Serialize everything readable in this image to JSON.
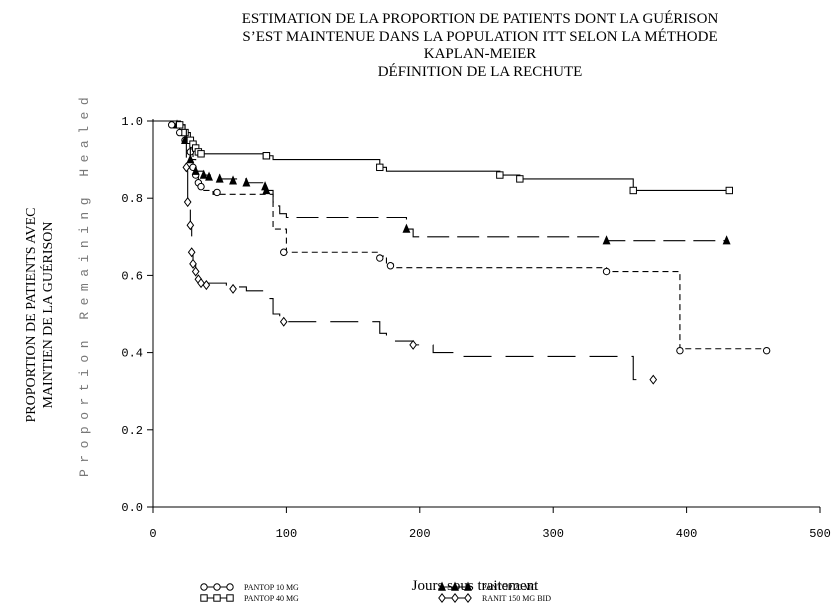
{
  "title_lines": [
    "ESTIMATION DE LA PROPORTION DE PATIENTS DONT LA GUÉRISON",
    "S’EST MAINTENUE DANS LA POPULATION ITT SELON LA MÉTHODE",
    "KAPLAN-MEIER",
    "DÉFINITION DE LA RECHUTE"
  ],
  "ylabel_fr_lines": [
    "PROPORTION DE PATIENTS AVEC",
    "MAINTIEN DE LA GUÉRISON"
  ],
  "ylabel_en": "Proportion Remaining Healed",
  "xlabel": "Jours sous traitement",
  "chart_data": {
    "type": "line",
    "subtype": "kaplan-meier step",
    "xlim": [
      0,
      500
    ],
    "ylim": [
      0,
      1.0
    ],
    "x_ticks": [
      "0",
      "100",
      "200",
      "300",
      "400",
      "500"
    ],
    "y_ticks": [
      "0.0",
      "0.2",
      "0.4",
      "0.6",
      "0.8",
      "1.0"
    ],
    "legend_position": "bottom",
    "series": [
      {
        "name": "PANTOP 10 MG",
        "marker": "circle",
        "dash": "6 4",
        "x": [
          0,
          14,
          20,
          24,
          28,
          30,
          32,
          34,
          36,
          38,
          45,
          60,
          90,
          100,
          170,
          175,
          180,
          340,
          395,
          460
        ],
        "y": [
          1.0,
          0.99,
          0.97,
          0.95,
          0.92,
          0.88,
          0.86,
          0.84,
          0.83,
          0.82,
          0.81,
          0.81,
          0.72,
          0.66,
          0.65,
          0.63,
          0.62,
          0.61,
          0.41,
          0.41
        ],
        "censored": [
          [
            48,
            0.815
          ],
          [
            98,
            0.66
          ],
          [
            170,
            0.645
          ],
          [
            178,
            0.625
          ],
          [
            340,
            0.61
          ],
          [
            395,
            0.405
          ],
          [
            460,
            0.405
          ]
        ]
      },
      {
        "name": "PANTOP 20 MG",
        "marker": "triangle",
        "dash": "22 8",
        "x": [
          0,
          18,
          24,
          28,
          32,
          38,
          50,
          70,
          85,
          90,
          95,
          100,
          190,
          195,
          340,
          430
        ],
        "y": [
          1.0,
          0.99,
          0.95,
          0.9,
          0.87,
          0.86,
          0.85,
          0.84,
          0.82,
          0.78,
          0.76,
          0.75,
          0.72,
          0.7,
          0.69,
          0.69
        ],
        "censored": [
          [
            42,
            0.855
          ],
          [
            60,
            0.845
          ],
          [
            84,
            0.83
          ],
          [
            190,
            0.72
          ],
          [
            340,
            0.69
          ],
          [
            430,
            0.69
          ]
        ]
      },
      {
        "name": "PANTOP 40 MG",
        "marker": "square",
        "dash": "",
        "x": [
          0,
          20,
          24,
          28,
          30,
          32,
          34,
          36,
          85,
          90,
          170,
          175,
          260,
          275,
          360,
          432
        ],
        "y": [
          1.0,
          0.99,
          0.97,
          0.95,
          0.94,
          0.93,
          0.92,
          0.915,
          0.91,
          0.9,
          0.88,
          0.87,
          0.86,
          0.85,
          0.82,
          0.82
        ],
        "censored": [
          [
            85,
            0.91
          ],
          [
            170,
            0.88
          ],
          [
            260,
            0.86
          ],
          [
            275,
            0.85
          ],
          [
            360,
            0.82
          ],
          [
            432,
            0.82
          ]
        ]
      },
      {
        "name": "RANIT 150 MG BID",
        "marker": "diamond",
        "dash": "28 14",
        "x": [
          0,
          25,
          26,
          28,
          29,
          30,
          32,
          34,
          36,
          55,
          70,
          85,
          90,
          95,
          100,
          170,
          175,
          180,
          195,
          210,
          230,
          360,
          375
        ],
        "y": [
          1.0,
          0.88,
          0.79,
          0.73,
          0.66,
          0.63,
          0.61,
          0.59,
          0.58,
          0.57,
          0.56,
          0.54,
          0.5,
          0.49,
          0.48,
          0.45,
          0.44,
          0.43,
          0.42,
          0.4,
          0.39,
          0.33,
          0.33
        ],
        "censored": [
          [
            40,
            0.575
          ],
          [
            60,
            0.565
          ],
          [
            98,
            0.48
          ],
          [
            195,
            0.42
          ],
          [
            375,
            0.33
          ]
        ]
      }
    ]
  },
  "colors": {
    "ink": "#000000",
    "label_gray": "#777777",
    "background": "#ffffff"
  }
}
